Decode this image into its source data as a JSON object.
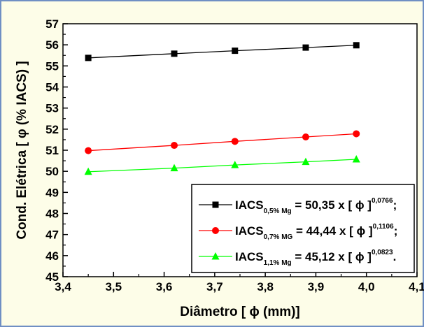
{
  "chart_data": {
    "type": "line",
    "xlabel": "Diâmetro [ ϕ (mm)]",
    "ylabel": "Cond. Elétrica [ φ (% IACS) ]",
    "xlim": [
      3.4,
      4.1
    ],
    "ylim": [
      45,
      57
    ],
    "xticks": [
      "3,4",
      "3,5",
      "3,6",
      "3,7",
      "3,8",
      "3,9",
      "4,0",
      "4,1"
    ],
    "yticks": [
      "45",
      "46",
      "47",
      "48",
      "49",
      "50",
      "51",
      "52",
      "53",
      "54",
      "55",
      "56",
      "57"
    ],
    "grid": false,
    "legend_position": "bottom-right",
    "series": [
      {
        "marker": "square",
        "color": "#000000",
        "x": [
          3.45,
          3.62,
          3.74,
          3.88,
          3.98
        ],
        "y": [
          55.38,
          55.58,
          55.72,
          55.87,
          55.98
        ],
        "legend": {
          "main": "IACS",
          "sub": "0,5% Mg",
          "eq": " = 50,35 x [ ϕ ]",
          "exp": "0,0766",
          "end": ";"
        }
      },
      {
        "marker": "circle",
        "color": "#ff0000",
        "x": [
          3.45,
          3.62,
          3.74,
          3.88,
          3.98
        ],
        "y": [
          50.98,
          51.23,
          51.42,
          51.63,
          51.78
        ],
        "legend": {
          "main": "IACS",
          "sub": "0,7% MG",
          "eq": " = 44,44 x [ ϕ ]",
          "exp": "0,1106",
          "end": ";"
        }
      },
      {
        "marker": "triangle",
        "color": "#00ff00",
        "x": [
          3.45,
          3.62,
          3.74,
          3.88,
          3.98
        ],
        "y": [
          49.98,
          50.15,
          50.3,
          50.45,
          50.57
        ],
        "legend": {
          "main": "IACS",
          "sub": "1,1% Mg",
          "eq": " = 45,12 x [ ϕ ]",
          "exp": "0,0823",
          "end": "."
        }
      }
    ]
  }
}
